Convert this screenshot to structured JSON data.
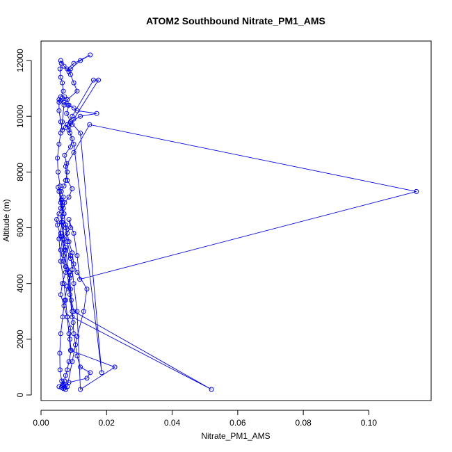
{
  "chart_data": {
    "type": "line",
    "title": "ATOM2 Southbound Nitrate_PM1_AMS",
    "xlabel": "Nitrate_PM1_AMS",
    "ylabel": "Altitude (m)",
    "xlim": [
      0,
      0.119
    ],
    "ylim": [
      -200,
      12700
    ],
    "xticks": [
      0,
      0.02,
      0.04,
      0.06,
      0.08,
      0.1
    ],
    "xtick_labels": [
      "0.00",
      "0.02",
      "0.04",
      "0.06",
      "0.08",
      "0.10"
    ],
    "yticks": [
      0,
      2000,
      4000,
      6000,
      8000,
      10000,
      12000
    ],
    "ytick_labels": [
      "0",
      "2000",
      "4000",
      "6000",
      "8000",
      "10000",
      "12000"
    ],
    "grid": false,
    "series": [
      {
        "name": "Nitrate_PM1_AMS",
        "color": "#0000ff",
        "x": [
          0.0055,
          0.0062,
          0.0068,
          0.0072,
          0.0075,
          0.0063,
          0.0058,
          0.0057,
          0.006,
          0.0066,
          0.0072,
          0.008,
          0.009,
          0.01,
          0.0095,
          0.0085,
          0.008,
          0.0075,
          0.007,
          0.006,
          0.0055,
          0.0052,
          0.0065,
          0.0062,
          0.007,
          0.0069,
          0.0075,
          0.0088,
          0.009,
          0.0092,
          0.0095,
          0.0098,
          0.01,
          0.0105,
          0.011,
          0.012,
          0.015,
          0.014,
          0.0085,
          0.007,
          0.008,
          0.0095,
          0.011,
          0.013,
          0.014,
          0.011,
          0.009,
          0.0075,
          0.006,
          0.005,
          0.0048,
          0.0055,
          0.006,
          0.0065,
          0.0068,
          0.0062,
          0.007,
          0.0075,
          0.008,
          0.0078,
          0.0072,
          0.009,
          0.0095,
          0.0085,
          0.008,
          0.009,
          0.012,
          0.017,
          0.011,
          0.01,
          0.0082,
          0.007,
          0.006,
          0.0055,
          0.0065,
          0.0072,
          0.008,
          0.0085,
          0.0078,
          0.009,
          0.012,
          0.0185,
          0.01,
          0.0088,
          0.0085,
          0.0095,
          0.01,
          0.0175,
          0.016,
          0.0095,
          0.008,
          0.0075,
          0.0065,
          0.006,
          0.0055,
          0.0055,
          0.006,
          0.0068,
          0.0065,
          0.006,
          0.0058,
          0.0062,
          0.006,
          0.007,
          0.0085,
          0.009,
          0.012,
          0.015,
          0.01,
          0.008,
          0.009,
          0.01,
          0.011,
          0.008,
          0.007,
          0.0065,
          0.006,
          0.0055,
          0.005,
          0.0052,
          0.0058,
          0.0062,
          0.007,
          0.0075,
          0.008,
          0.009,
          0.0095,
          0.01,
          0.011,
          0.012,
          0.0225,
          0.009,
          0.0085,
          0.008,
          0.0075,
          0.007,
          0.006,
          0.0055,
          0.0065,
          0.0075,
          0.0085,
          0.0088,
          0.0095,
          0.052,
          0.01,
          0.0085,
          0.008,
          0.007,
          0.006,
          0.0065,
          0.0068,
          0.0072,
          0.0085,
          0.0095,
          0.008,
          0.0075,
          0.01,
          0.0148,
          0.1145,
          0.0118,
          0.011,
          0.01,
          0.0085,
          0.009,
          0.0065,
          0.006,
          0.0068,
          0.0075,
          0.0065,
          0.006,
          0.007,
          0.008,
          0.009,
          0.0088,
          0.0092,
          0.0085,
          0.008,
          0.0075,
          0.0072,
          0.0068,
          0.0065
        ],
        "y": [
          300,
          270,
          230,
          250,
          200,
          500,
          900,
          1500,
          2200,
          2800,
          3400,
          3900,
          4300,
          4700,
          5100,
          5500,
          5800,
          6100,
          6500,
          6900,
          7300,
          7450,
          6800,
          6200,
          5600,
          5000,
          4600,
          4200,
          3800,
          3400,
          3000,
          2600,
          2200,
          1800,
          1400,
          1000,
          800,
          600,
          450,
          350,
          300,
          1200,
          2100,
          3000,
          3800,
          4400,
          4900,
          5300,
          5700,
          6100,
          6300,
          6500,
          6700,
          6900,
          7100,
          7300,
          7500,
          7700,
          8000,
          8300,
          8600,
          8900,
          9200,
          9500,
          9700,
          9800,
          10000,
          10100,
          10200,
          10300,
          10400,
          10500,
          10550,
          10600,
          10650,
          10700,
          10600,
          10400,
          10100,
          9800,
          9400,
          800,
          9000,
          9400,
          9650,
          9700,
          9900,
          11300,
          11300,
          10000,
          9700,
          9600,
          9500,
          9800,
          10200,
          10500,
          10700,
          10900,
          11200,
          11400,
          11700,
          11900,
          12000,
          11800,
          11600,
          11700,
          12000,
          12200,
          11900,
          11700,
          11500,
          11200,
          10900,
          10600,
          10400,
          9800,
          9400,
          9000,
          8500,
          8000,
          7500,
          7000,
          6500,
          6000,
          5500,
          5000,
          4500,
          4000,
          3000,
          200,
          1000,
          1600,
          2200,
          2800,
          3400,
          4000,
          4800,
          5600,
          6200,
          5200,
          4400,
          3600,
          2800,
          200,
          3000,
          3800,
          4500,
          5200,
          5800,
          6400,
          6700,
          6900,
          7100,
          7400,
          7700,
          8200,
          8700,
          9700,
          7300,
          4150,
          5000,
          5800,
          6300,
          6000,
          5600,
          5200,
          4800,
          4400,
          4000,
          3600,
          3200,
          2800,
          2400,
          2000,
          1600,
          1200,
          900,
          700,
          500,
          400,
          350
        ]
      }
    ]
  }
}
